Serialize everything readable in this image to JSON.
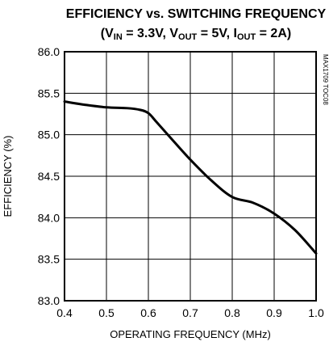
{
  "chart_data": {
    "type": "line",
    "title": "EFFICIENCY vs. SWITCHING FREQUENCY",
    "subtitle": {
      "open": "(V",
      "vin_sub": "IN",
      "vin_val": " = 3.3V, V",
      "vout_sub": "OUT",
      "vout_val": " = 5V, I",
      "iout_sub": "OUT",
      "iout_val": " = 2A)"
    },
    "xlabel": "OPERATING FREQUENCY (MHz)",
    "ylabel": "EFFICIENCY (%)",
    "xlim": [
      0.4,
      1.0
    ],
    "ylim": [
      83.0,
      86.0
    ],
    "x_ticks": [
      "0.4",
      "0.5",
      "0.6",
      "0.7",
      "0.8",
      "0.9",
      "1.0"
    ],
    "y_ticks": [
      "86.0",
      "85.5",
      "85.0",
      "84.5",
      "84.0",
      "83.5",
      "83.0"
    ],
    "grid": true,
    "figure_code": "MAX1709 TOC08",
    "line_color": "#000000",
    "series": [
      {
        "x": [
          0.4,
          0.45,
          0.5,
          0.55,
          0.58,
          0.6,
          0.62,
          0.65,
          0.7,
          0.75,
          0.8,
          0.85,
          0.9,
          0.95,
          1.0
        ],
        "values": [
          85.4,
          85.36,
          85.33,
          85.32,
          85.3,
          85.26,
          85.15,
          84.98,
          84.7,
          84.45,
          84.25,
          84.18,
          84.05,
          83.85,
          83.57
        ]
      }
    ]
  }
}
